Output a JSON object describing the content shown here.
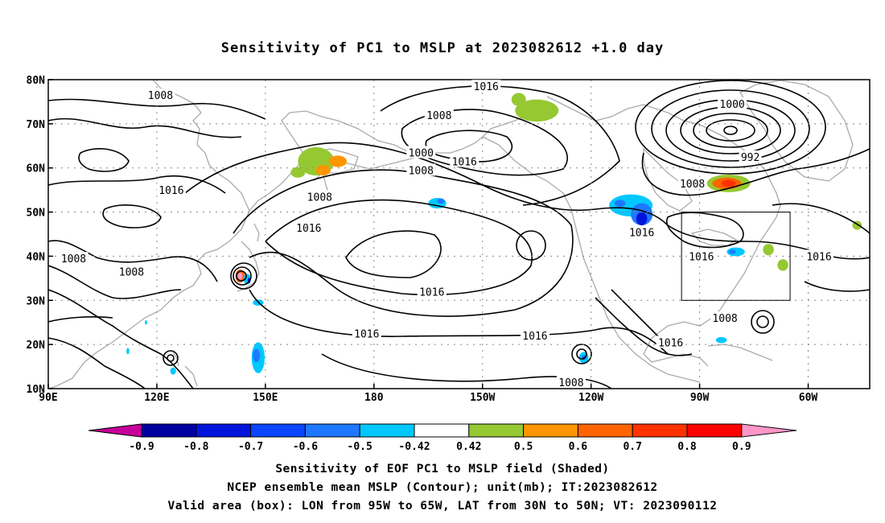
{
  "title": "Sensitivity of PC1 to MSLP at 2023082612 +1.0 day",
  "captions": [
    "Sensitivity of EOF PC1 to MSLP field (Shaded)",
    "NCEP ensemble mean MSLP (Contour); unit(mb); IT:2023082612",
    "Valid area (box): LON from 95W to 65W, LAT from 30N to 50N; VT: 2023090112"
  ],
  "chart_data": {
    "type": "heatmap",
    "map_extent": {
      "lon": [
        90,
        317
      ],
      "lat": [
        10,
        80
      ]
    },
    "grid": true,
    "x_ticks": [
      {
        "lon": 90,
        "label": "90E"
      },
      {
        "lon": 120,
        "label": "120E"
      },
      {
        "lon": 150,
        "label": "150E"
      },
      {
        "lon": 180,
        "label": "180"
      },
      {
        "lon": 210,
        "label": "150W"
      },
      {
        "lon": 240,
        "label": "120W"
      },
      {
        "lon": 270,
        "label": "90W"
      },
      {
        "lon": 300,
        "label": "60W"
      }
    ],
    "y_ticks": [
      {
        "lat": 10,
        "label": "10N"
      },
      {
        "lat": 20,
        "label": "20N"
      },
      {
        "lat": 30,
        "label": "30N"
      },
      {
        "lat": 40,
        "label": "40N"
      },
      {
        "lat": 50,
        "label": "50N"
      },
      {
        "lat": 60,
        "label": "60N"
      },
      {
        "lat": 70,
        "label": "70N"
      },
      {
        "lat": 80,
        "label": "80N"
      }
    ],
    "valid_box": {
      "lon": [
        265,
        295
      ],
      "lat": [
        30,
        50
      ]
    },
    "colorbar": {
      "labels": [
        "-0.9",
        "-0.8",
        "-0.7",
        "-0.6",
        "-0.5",
        "-0.42",
        "0.42",
        "0.5",
        "0.6",
        "0.7",
        "0.8",
        "0.9"
      ],
      "colors": [
        "#c8009a",
        "#0000a0",
        "#0014dc",
        "#0a46ff",
        "#1e78ff",
        "#00c8ff",
        "#ffffff",
        "#96c832",
        "#ff9600",
        "#ff6400",
        "#ff3200",
        "#ff0000",
        "#ff96c8"
      ]
    },
    "contour_labels": [
      {
        "text": "1008",
        "lon": 121,
        "lat": 76.5
      },
      {
        "text": "1016",
        "lon": 211,
        "lat": 78.5
      },
      {
        "text": "1008",
        "lon": 198,
        "lat": 72
      },
      {
        "text": "1000",
        "lon": 279,
        "lat": 74.5
      },
      {
        "text": "992",
        "lon": 284,
        "lat": 62.5
      },
      {
        "text": "1000",
        "lon": 193,
        "lat": 63.5
      },
      {
        "text": "1016",
        "lon": 205,
        "lat": 61.5
      },
      {
        "text": "1008",
        "lon": 193,
        "lat": 59.5
      },
      {
        "text": "1008",
        "lon": 268,
        "lat": 56.5
      },
      {
        "text": "1016",
        "lon": 124,
        "lat": 55
      },
      {
        "text": "1008",
        "lon": 165,
        "lat": 53.5
      },
      {
        "text": "1016",
        "lon": 162,
        "lat": 46.5
      },
      {
        "text": "1016",
        "lon": 254,
        "lat": 45.5
      },
      {
        "text": "1016",
        "lon": 270.5,
        "lat": 40
      },
      {
        "text": "1016",
        "lon": 303,
        "lat": 40
      },
      {
        "text": "1008",
        "lon": 97,
        "lat": 39.5
      },
      {
        "text": "1008",
        "lon": 113,
        "lat": 36.5
      },
      {
        "text": "1016",
        "lon": 196,
        "lat": 32
      },
      {
        "text": "1008",
        "lon": 277,
        "lat": 26
      },
      {
        "text": "1016",
        "lon": 178,
        "lat": 22.5
      },
      {
        "text": "1016",
        "lon": 224.5,
        "lat": 22
      },
      {
        "text": "1016",
        "lon": 262,
        "lat": 20.5
      },
      {
        "text": "1008",
        "lon": 234.5,
        "lat": 11.5
      }
    ],
    "shaded_regions": [
      {
        "lon": 164,
        "lat": 61.5,
        "rx": 5,
        "ry": 3.2,
        "value": 0.45
      },
      {
        "lon": 159,
        "lat": 59,
        "rx": 2,
        "ry": 1.2,
        "value": 0.45
      },
      {
        "lon": 166,
        "lat": 59.5,
        "rx": 2,
        "ry": 1.2,
        "value": 0.55
      },
      {
        "lon": 170,
        "lat": 61.5,
        "rx": 2.5,
        "ry": 1.3,
        "value": 0.55
      },
      {
        "lon": 225,
        "lat": 73,
        "rx": 6,
        "ry": 2.5,
        "value": 0.45
      },
      {
        "lon": 220,
        "lat": 75.5,
        "rx": 2,
        "ry": 1.5,
        "value": 0.45
      },
      {
        "lon": 278,
        "lat": 56.5,
        "rx": 6,
        "ry": 2,
        "value": 0.45
      },
      {
        "lon": 277.5,
        "lat": 56.5,
        "rx": 4,
        "ry": 1.3,
        "value": 0.6
      },
      {
        "lon": 278,
        "lat": 56.5,
        "rx": 2,
        "ry": 0.8,
        "value": 0.7
      },
      {
        "lon": 289,
        "lat": 41.5,
        "rx": 1.5,
        "ry": 1.3,
        "value": 0.45
      },
      {
        "lon": 293,
        "lat": 38,
        "rx": 1.5,
        "ry": 1.3,
        "value": 0.45
      },
      {
        "lon": 313.5,
        "lat": 47,
        "rx": 1.3,
        "ry": 1,
        "value": 0.45
      },
      {
        "lon": 110,
        "lat": 36,
        "rx": 0.3,
        "ry": 0.3,
        "value": 0.45
      },
      {
        "lon": 143,
        "lat": 35.5,
        "rx": 1.3,
        "ry": 1.5,
        "value": 0.6
      },
      {
        "lon": 143,
        "lat": 35.5,
        "rx": 0.7,
        "ry": 0.8,
        "value": 0.9
      },
      {
        "lon": 145,
        "lat": 34.8,
        "rx": 1,
        "ry": 1.2,
        "value": -0.5
      },
      {
        "lon": 145.5,
        "lat": 34.5,
        "rx": 0.4,
        "ry": 0.6,
        "value": -0.8
      },
      {
        "lon": 148,
        "lat": 29.5,
        "rx": 1.5,
        "ry": 0.7,
        "value": -0.5
      },
      {
        "lon": 148,
        "lat": 17,
        "rx": 1.8,
        "ry": 3.5,
        "value": -0.5
      },
      {
        "lon": 147.5,
        "lat": 17.5,
        "rx": 1,
        "ry": 1.5,
        "value": -0.6
      },
      {
        "lon": 117,
        "lat": 25,
        "rx": 0.3,
        "ry": 0.5,
        "value": -0.5
      },
      {
        "lon": 112,
        "lat": 18.5,
        "rx": 0.4,
        "ry": 0.7,
        "value": -0.5
      },
      {
        "lon": 124.5,
        "lat": 14,
        "rx": 0.8,
        "ry": 0.8,
        "value": -0.5
      },
      {
        "lon": 197.5,
        "lat": 52,
        "rx": 2.5,
        "ry": 1.2,
        "value": -0.5
      },
      {
        "lon": 198.5,
        "lat": 52.5,
        "rx": 1,
        "ry": 0.6,
        "value": -0.6
      },
      {
        "lon": 251,
        "lat": 51.5,
        "rx": 6,
        "ry": 2.5,
        "value": -0.5
      },
      {
        "lon": 254,
        "lat": 49.5,
        "rx": 3,
        "ry": 2.5,
        "value": -0.6
      },
      {
        "lon": 254,
        "lat": 48.5,
        "rx": 1.5,
        "ry": 1.5,
        "value": -0.8
      },
      {
        "lon": 248,
        "lat": 52,
        "rx": 1.5,
        "ry": 0.8,
        "value": -0.6
      },
      {
        "lon": 280,
        "lat": 41,
        "rx": 2.5,
        "ry": 1,
        "value": -0.5
      },
      {
        "lon": 279,
        "lat": 41,
        "rx": 1,
        "ry": 0.5,
        "value": -0.6
      },
      {
        "lon": 238,
        "lat": 17,
        "rx": 1.3,
        "ry": 1.3,
        "value": -0.5
      },
      {
        "lon": 238,
        "lat": 17,
        "rx": 0.6,
        "ry": 0.6,
        "value": -0.6
      },
      {
        "lon": 276,
        "lat": 21,
        "rx": 1.5,
        "ry": 0.7,
        "value": -0.5
      }
    ]
  }
}
